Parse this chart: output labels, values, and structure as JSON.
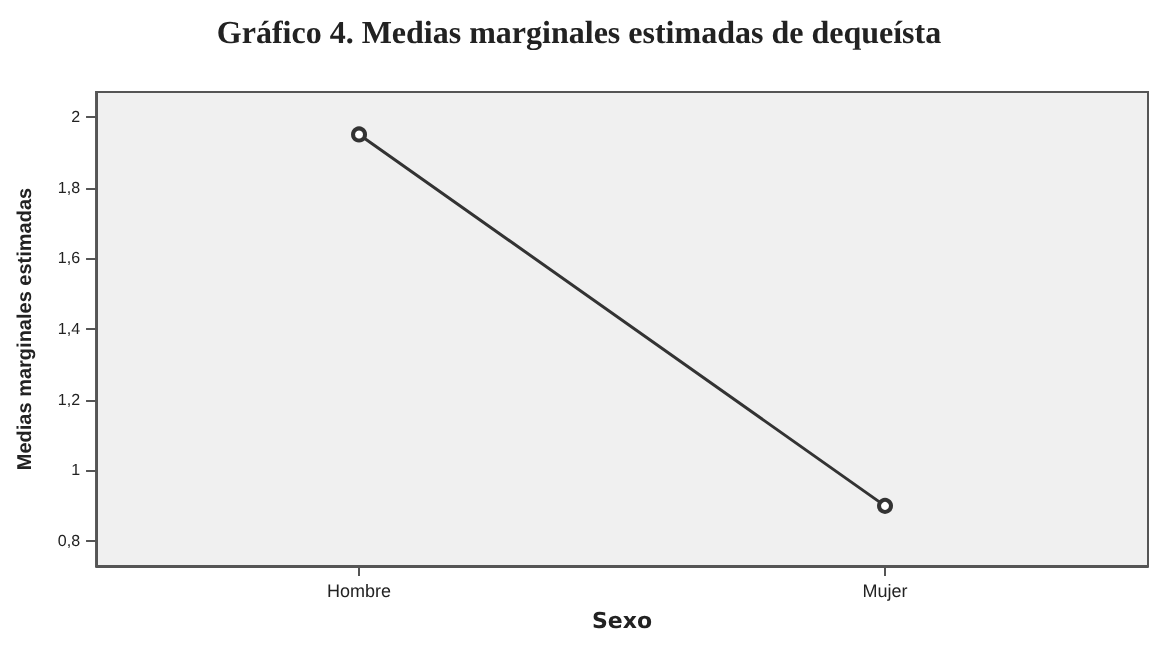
{
  "chart_data": {
    "type": "line",
    "title": "Gráfico 4. Medias marginales estimadas de dequeísta",
    "xlabel": "Sexo",
    "ylabel": "Medias marginales estimadas",
    "categories": [
      "Hombre",
      "Mujer"
    ],
    "series": [
      {
        "color": "#333333",
        "values": [
          1.95,
          0.9
        ]
      }
    ],
    "ylim": [
      0.73,
      2.07
    ],
    "yticks": [
      {
        "value": 0.8,
        "label": "0,8"
      },
      1,
      {
        "value": 1.2,
        "label": "1,2"
      },
      {
        "value": 1.4,
        "label": "1,4"
      },
      {
        "value": 1.6,
        "label": "1,6"
      },
      {
        "value": 1.8,
        "label": "1,8"
      },
      2
    ],
    "grid": false,
    "marker": "circle",
    "line_style": "solid"
  }
}
